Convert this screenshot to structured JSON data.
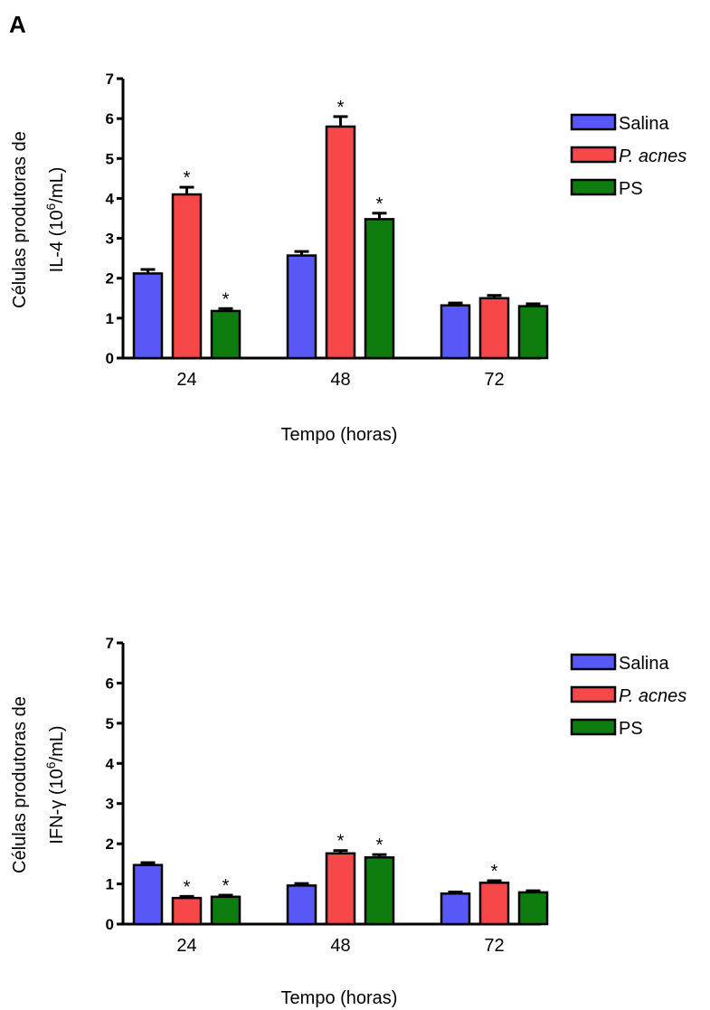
{
  "panel_label": "A",
  "chart_data": [
    {
      "type": "bar",
      "categories": [
        "24",
        "48",
        "72"
      ],
      "xlabel": "Tempo (horas)",
      "ylabel_line1": "Células produtoras de",
      "ylabel_line2": "IL-4 (10",
      "ylabel_sup": "6",
      "ylabel_tail": "/mL)",
      "ylim": [
        0,
        7
      ],
      "yticks": [
        "0",
        "1",
        "2",
        "3",
        "4",
        "5",
        "6",
        "7"
      ],
      "legend_position": "top-right",
      "series": [
        {
          "name": "Salina",
          "color": "#5858f6",
          "values": [
            2.12,
            2.57,
            1.32
          ],
          "errors": [
            0.1,
            0.1,
            0.06
          ],
          "significant": [
            false,
            false,
            false
          ]
        },
        {
          "name": "P. acnes",
          "color": "#f64848",
          "values": [
            4.1,
            5.8,
            1.5
          ],
          "errors": [
            0.18,
            0.25,
            0.07
          ],
          "significant": [
            true,
            true,
            false
          ]
        },
        {
          "name": "PS",
          "color": "#0e7c0e",
          "values": [
            1.18,
            3.48,
            1.3
          ],
          "errors": [
            0.06,
            0.15,
            0.06
          ],
          "significant": [
            true,
            true,
            false
          ]
        }
      ],
      "annotation_mark": "*"
    },
    {
      "type": "bar",
      "categories": [
        "24",
        "48",
        "72"
      ],
      "xlabel": "Tempo (horas)",
      "ylabel_line1": "Células produtoras de",
      "ylabel_line2": "IFN-γ (10",
      "ylabel_sup": "6",
      "ylabel_tail": "/mL)",
      "ylim": [
        0,
        7
      ],
      "yticks": [
        "0",
        "1",
        "2",
        "3",
        "4",
        "5",
        "6",
        "7"
      ],
      "legend_position": "top-right",
      "series": [
        {
          "name": "Salina",
          "color": "#5858f6",
          "values": [
            1.47,
            0.96,
            0.76
          ],
          "errors": [
            0.06,
            0.05,
            0.04
          ],
          "significant": [
            false,
            false,
            false
          ]
        },
        {
          "name": "P. acnes",
          "color": "#f64848",
          "values": [
            0.65,
            1.76,
            1.03
          ],
          "errors": [
            0.04,
            0.07,
            0.05
          ],
          "significant": [
            true,
            true,
            true
          ]
        },
        {
          "name": "PS",
          "color": "#0e7c0e",
          "values": [
            0.68,
            1.66,
            0.79
          ],
          "errors": [
            0.04,
            0.07,
            0.04
          ],
          "significant": [
            true,
            true,
            false
          ]
        }
      ],
      "annotation_mark": "*"
    }
  ]
}
